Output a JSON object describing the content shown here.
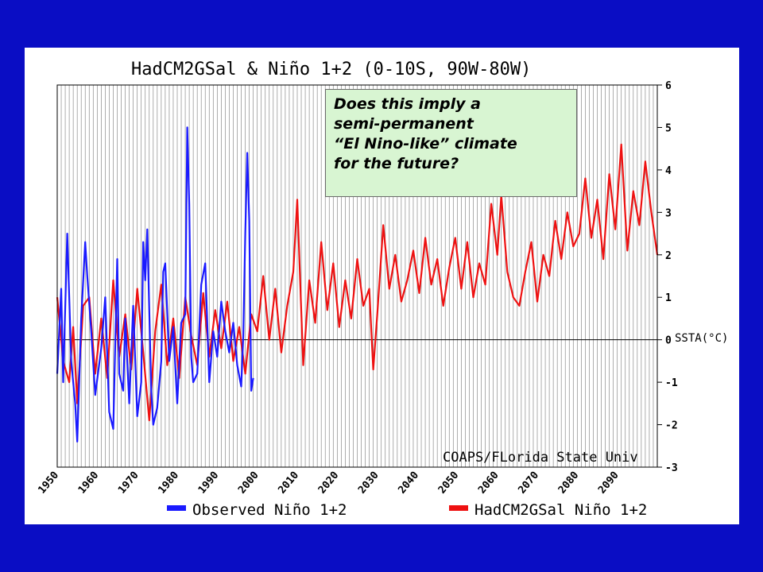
{
  "chart_data": {
    "type": "line",
    "title": "HadCM2GSal & Niño 1+2 (0-10S, 90W-80W)",
    "ylabel": "SSTA(°C)",
    "ylim": [
      -3,
      6
    ],
    "xlim": [
      1950,
      2100
    ],
    "y_ticks": [
      "6",
      "5",
      "4",
      "3",
      "2",
      "1",
      "0",
      "-1",
      "-2",
      "-3"
    ],
    "x_ticks": [
      "1950",
      "1960",
      "1970",
      "1980",
      "1990",
      "2000",
      "2010",
      "2020",
      "2030",
      "2040",
      "2050",
      "2060",
      "2070",
      "2080",
      "2090"
    ],
    "grid": "vertical",
    "credit": "COAPS/FLorida State Univ",
    "series": [
      {
        "name": "Observed Niño 1+2",
        "color": "#1a1aff",
        "x": [
          1950.0,
          1951.0,
          1951.5,
          1952.5,
          1953.5,
          1954.5,
          1955.0,
          1956.0,
          1957.0,
          1957.5,
          1958.5,
          1959.5,
          1961.0,
          1962.0,
          1963.0,
          1964.0,
          1965.0,
          1965.5,
          1966.5,
          1967.0,
          1968.0,
          1969.0,
          1970.0,
          1971.0,
          1971.5,
          1972.0,
          1972.5,
          1973.5,
          1974.0,
          1975.0,
          1976.0,
          1976.5,
          1977.0,
          1978.0,
          1979.0,
          1980.0,
          1981.0,
          1982.0,
          1982.5,
          1983.0,
          1983.5,
          1984.0,
          1985.0,
          1986.0,
          1987.0,
          1988.0,
          1989.0,
          1990.0,
          1991.0,
          1992.0,
          1993.0,
          1994.0,
          1995.0,
          1996.0,
          1996.5,
          1997.0,
          1997.5,
          1998.0,
          1998.5,
          1999.0
        ],
        "y": [
          -0.8,
          1.2,
          -1.0,
          2.5,
          -0.5,
          -1.5,
          -2.4,
          0.5,
          2.3,
          1.5,
          0.2,
          -1.3,
          -0.2,
          1.0,
          -1.7,
          -2.1,
          1.9,
          -0.8,
          -1.2,
          0.5,
          -1.5,
          0.8,
          -1.8,
          -1.0,
          2.3,
          1.4,
          2.6,
          -1.2,
          -2.0,
          -1.6,
          -0.5,
          1.6,
          1.8,
          -0.5,
          0.3,
          -1.5,
          0.4,
          0.6,
          5.0,
          3.2,
          -0.4,
          -1.0,
          -0.8,
          1.3,
          1.8,
          -1.0,
          0.2,
          -0.4,
          0.9,
          0.2,
          -0.3,
          0.4,
          -0.6,
          -1.1,
          0.1,
          2.5,
          4.4,
          2.8,
          -1.2,
          -0.9
        ]
      },
      {
        "name": "HadCM2GSal Niño 1+2",
        "color": "#ee1111",
        "x": [
          1950.0,
          1951.5,
          1953.0,
          1954.0,
          1955.0,
          1956.5,
          1958.0,
          1959.5,
          1961.0,
          1962.5,
          1964.0,
          1965.5,
          1967.0,
          1968.5,
          1970.0,
          1971.5,
          1973.0,
          1974.5,
          1976.0,
          1977.5,
          1979.0,
          1980.5,
          1982.0,
          1983.5,
          1985.0,
          1986.5,
          1988.0,
          1989.5,
          1991.0,
          1992.5,
          1994.0,
          1995.5,
          1997.0,
          1998.5,
          2000.0,
          2001.5,
          2003.0,
          2004.5,
          2006.0,
          2007.5,
          2009.0,
          2010.0,
          2011.5,
          2013.0,
          2014.5,
          2016.0,
          2017.5,
          2019.0,
          2020.5,
          2022.0,
          2023.5,
          2025.0,
          2026.5,
          2028.0,
          2029.0,
          2030.0,
          2031.5,
          2033.0,
          2034.5,
          2036.0,
          2037.5,
          2039.0,
          2040.5,
          2042.0,
          2043.5,
          2045.0,
          2046.5,
          2048.0,
          2049.5,
          2051.0,
          2052.5,
          2054.0,
          2055.5,
          2057.0,
          2058.5,
          2060.0,
          2061.0,
          2062.5,
          2064.0,
          2065.5,
          2067.0,
          2068.5,
          2070.0,
          2071.5,
          2073.0,
          2074.5,
          2076.0,
          2077.5,
          2079.0,
          2080.5,
          2082.0,
          2083.5,
          2085.0,
          2086.5,
          2088.0,
          2089.5,
          2091.0,
          2092.5,
          2094.0,
          2095.5,
          2097.0,
          2098.5,
          2100.0
        ],
        "y": [
          1.0,
          -0.5,
          -1.0,
          0.3,
          -1.5,
          0.8,
          1.0,
          -0.8,
          0.5,
          -0.9,
          1.4,
          -0.4,
          0.6,
          -0.7,
          1.2,
          -0.3,
          -1.9,
          0.2,
          1.3,
          -0.6,
          0.5,
          -0.9,
          1.0,
          0.1,
          -0.6,
          1.1,
          -0.4,
          0.7,
          -0.2,
          0.9,
          -0.5,
          0.3,
          -0.8,
          0.6,
          0.2,
          1.5,
          0.0,
          1.2,
          -0.3,
          0.8,
          1.6,
          3.3,
          -0.6,
          1.4,
          0.4,
          2.3,
          0.7,
          1.8,
          0.3,
          1.4,
          0.5,
          1.9,
          0.8,
          1.2,
          -0.7,
          0.6,
          2.7,
          1.2,
          2.0,
          0.9,
          1.4,
          2.1,
          1.1,
          2.4,
          1.3,
          1.9,
          0.8,
          1.7,
          2.4,
          1.2,
          2.3,
          1.0,
          1.8,
          1.3,
          3.2,
          2.0,
          3.4,
          1.6,
          1.0,
          0.8,
          1.6,
          2.3,
          0.9,
          2.0,
          1.5,
          2.8,
          1.9,
          3.0,
          2.2,
          2.5,
          3.8,
          2.4,
          3.3,
          1.9,
          3.9,
          2.6,
          4.6,
          2.1,
          3.5,
          2.7,
          4.2,
          3.0,
          2.0
        ]
      }
    ]
  },
  "legend": {
    "observed_label": "Observed Niño 1+2",
    "model_label": "HadCM2GSal Niño 1+2"
  },
  "callout": {
    "line1": "Does this imply a",
    "line2": "semi-permanent",
    "line3": "“El Nino-like” climate",
    "line4": "for the future?"
  }
}
